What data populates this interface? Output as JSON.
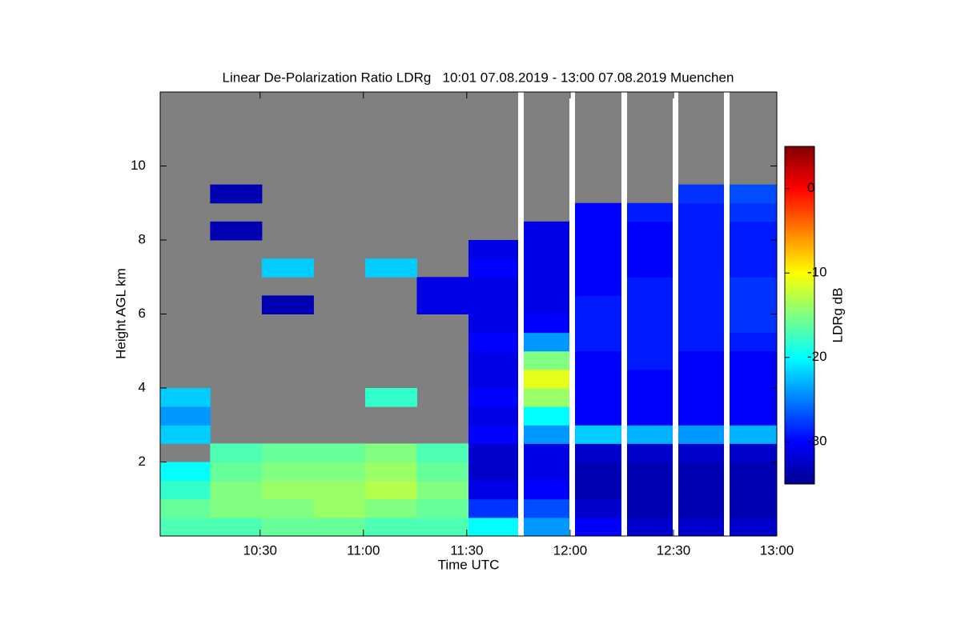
{
  "chart_data": {
    "type": "heatmap",
    "title": "Linear De-Polarization Ratio LDRg   10:01 07.08.2019 - 13:00 07.08.2019 Muenchen",
    "xlabel": "Time UTC",
    "ylabel": "Height AGL km",
    "colorbar_label": "LDRg dB",
    "colormap": "jet",
    "missing_color": "#808080",
    "x": [
      608,
      623,
      638,
      653,
      668,
      683,
      698,
      713,
      728,
      743,
      758,
      773
    ],
    "y": [
      0.25,
      0.75,
      1.25,
      1.75,
      2.25,
      2.75,
      3.25,
      3.75,
      4.25,
      4.75,
      5.25,
      5.75,
      6.25,
      6.75,
      7.25,
      7.75,
      8.25,
      8.75,
      9.25,
      9.75,
      10.25,
      10.75,
      11.25,
      11.75
    ],
    "z": [
      [
        -17,
        -17,
        -16,
        -16,
        -17,
        -17,
        -20,
        -24,
        -30,
        -32,
        -32,
        -32
      ],
      [
        -16,
        -15,
        -15,
        -14,
        -15,
        -16,
        -28,
        -27,
        -32,
        -33,
        -33,
        -33
      ],
      [
        -18,
        -15,
        -14,
        -14,
        -13,
        -15,
        -31,
        -30,
        -33,
        -33,
        -33,
        -33
      ],
      [
        -20,
        -16,
        -15,
        -15,
        -14,
        -16,
        -32,
        -31,
        -33,
        -33,
        -33,
        -33
      ],
      [
        null,
        -17,
        -16,
        -16,
        -15,
        -17,
        -32,
        -31,
        -32,
        -32,
        -32,
        -32
      ],
      [
        -22,
        null,
        null,
        null,
        null,
        null,
        -30,
        -24,
        -22,
        -23,
        -24,
        -23
      ],
      [
        -24,
        null,
        null,
        null,
        null,
        null,
        -31,
        -20,
        -30,
        -30,
        -30,
        -30
      ],
      [
        -22,
        null,
        null,
        null,
        -18,
        null,
        -30,
        -14,
        -30,
        -30,
        -30,
        -30
      ],
      [
        null,
        null,
        null,
        null,
        null,
        null,
        -31,
        -11,
        -30,
        -30,
        -30,
        -30
      ],
      [
        null,
        null,
        null,
        null,
        null,
        null,
        -31,
        -15,
        -30,
        -29,
        -30,
        -30
      ],
      [
        null,
        null,
        null,
        null,
        null,
        null,
        -30,
        -24,
        -29,
        -29,
        -29,
        -29
      ],
      [
        null,
        null,
        null,
        null,
        null,
        null,
        -31,
        -30,
        -29,
        -29,
        -29,
        -28
      ],
      [
        null,
        null,
        -33,
        null,
        null,
        -31,
        -31,
        -31,
        -29,
        -29,
        -29,
        -28
      ],
      [
        null,
        null,
        null,
        null,
        null,
        -31,
        -31,
        -31,
        -30,
        -29,
        -29,
        -28
      ],
      [
        null,
        null,
        -22,
        null,
        -22,
        null,
        -30,
        -31,
        -30,
        -30,
        -29,
        -29
      ],
      [
        null,
        null,
        null,
        null,
        null,
        null,
        -31,
        -31,
        -30,
        -30,
        -29,
        -29
      ],
      [
        null,
        -33,
        null,
        null,
        null,
        null,
        null,
        -31,
        -30,
        -30,
        -29,
        -29
      ],
      [
        null,
        null,
        null,
        null,
        null,
        null,
        null,
        null,
        -30,
        -29,
        -29,
        -28
      ],
      [
        null,
        -33,
        null,
        null,
        null,
        null,
        null,
        null,
        null,
        null,
        -28,
        -27
      ],
      [
        null,
        null,
        null,
        null,
        null,
        null,
        null,
        null,
        null,
        null,
        null,
        null
      ],
      [
        null,
        null,
        null,
        null,
        null,
        null,
        null,
        null,
        null,
        null,
        null,
        null
      ],
      [
        null,
        null,
        null,
        null,
        null,
        null,
        null,
        null,
        null,
        null,
        null,
        null
      ],
      [
        null,
        null,
        null,
        null,
        null,
        null,
        null,
        null,
        null,
        null,
        null,
        null
      ],
      [
        null,
        null,
        null,
        null,
        null,
        null,
        null,
        null,
        null,
        null,
        null,
        null
      ]
    ],
    "xlim": [
      601,
      780
    ],
    "xticks": [
      {
        "value": 630,
        "label": "10:30"
      },
      {
        "value": 660,
        "label": "11:00"
      },
      {
        "value": 690,
        "label": "11:30"
      },
      {
        "value": 720,
        "label": "12:00"
      },
      {
        "value": 750,
        "label": "12:30"
      },
      {
        "value": 780,
        "label": "13:00"
      }
    ],
    "ylim": [
      0,
      12
    ],
    "yticks": [
      2,
      4,
      6,
      8,
      10
    ],
    "zlim": [
      -35,
      5
    ],
    "zticks": [
      -30,
      -20,
      -10,
      0
    ]
  }
}
